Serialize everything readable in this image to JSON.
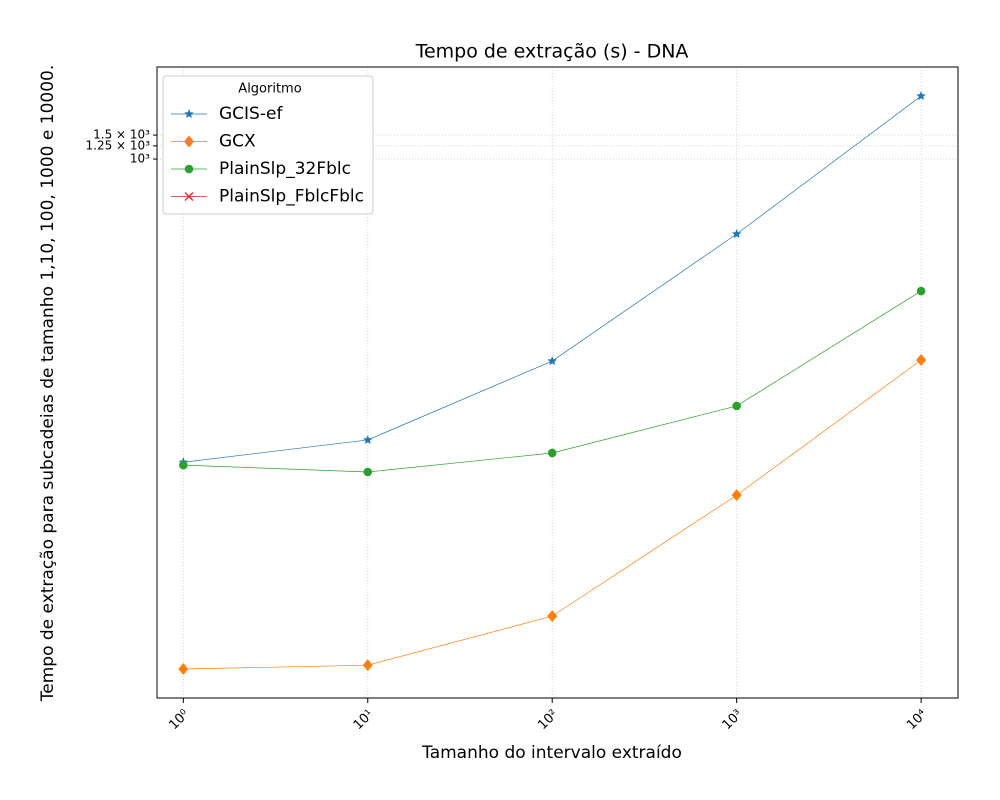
{
  "chart_data": {
    "type": "line",
    "title": "Tempo de extração (s) - DNA",
    "xlabel": "Tamanho do intervalo extraído",
    "ylabel": "Tempo de extração para subcadeias de tamanho 1,10, 100, 1000 e 10000.",
    "x": [
      1,
      10,
      100,
      1000,
      10000
    ],
    "xlog": true,
    "ylog": true,
    "xlim": [
      0.72,
      15850
    ],
    "ylim": [
      0.109,
      4750
    ],
    "xticks": [
      {
        "value": 1,
        "label": "10⁰"
      },
      {
        "value": 10,
        "label": "10¹"
      },
      {
        "value": 100,
        "label": "10²"
      },
      {
        "value": 1000,
        "label": "10³"
      },
      {
        "value": 10000,
        "label": "10⁴"
      }
    ],
    "yticks": [
      {
        "value": 1000,
        "label": "10³"
      },
      {
        "value": 1250,
        "label": "1.25 × 10³"
      },
      {
        "value": 1500,
        "label": "1.5 × 10³"
      }
    ],
    "grid": true,
    "legend_title": "Algoritmo",
    "legend_position": "upper-left",
    "series": [
      {
        "name": "GCIS-ef",
        "color": "#1f77b4",
        "marker": "star",
        "values": [
          5.9,
          8.6,
          32.7,
          281,
          2904
        ]
      },
      {
        "name": "GCX",
        "color": "#ff7f0e",
        "marker": "diamond",
        "values": [
          0.178,
          0.19,
          0.436,
          3.38,
          33.3
        ]
      },
      {
        "name": "PlainSlp_32Fblc",
        "color": "#2ca02c",
        "marker": "circle",
        "values": [
          5.62,
          5.0,
          6.9,
          15.3,
          107
        ]
      },
      {
        "name": "PlainSlp_FblcFblc",
        "color": "#d62728",
        "marker": "x",
        "values": [
          null,
          null,
          null,
          null,
          null
        ]
      }
    ]
  }
}
